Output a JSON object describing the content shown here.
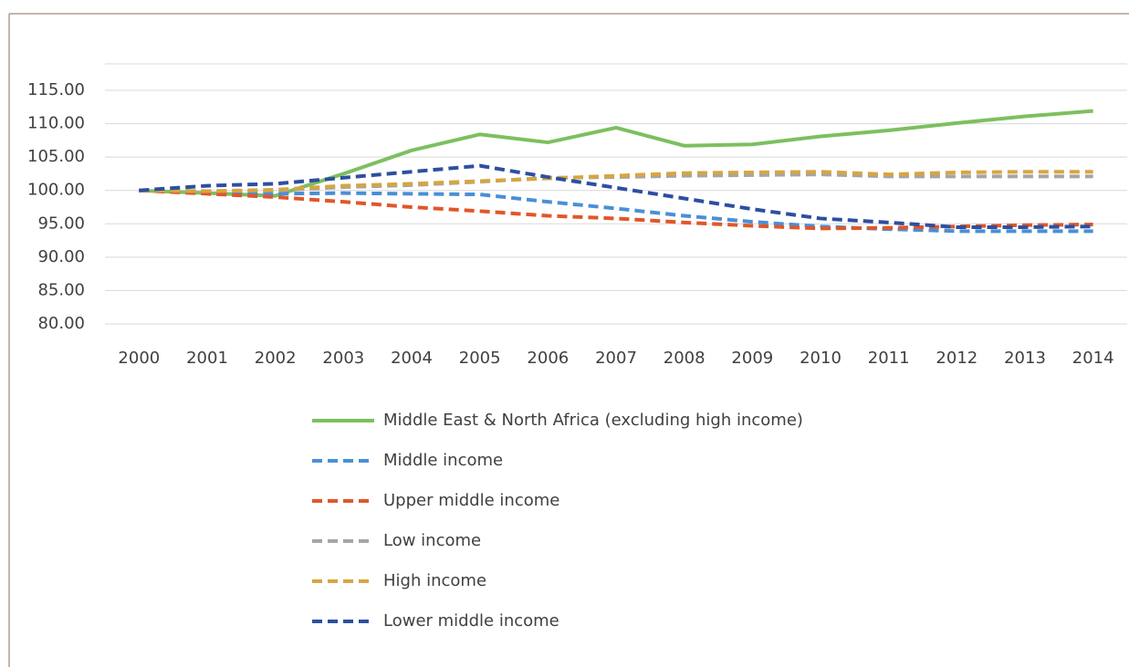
{
  "chart_data": {
    "type": "line",
    "categories": [
      "2000",
      "2001",
      "2002",
      "2003",
      "2004",
      "2005",
      "2006",
      "2007",
      "2008",
      "2009",
      "2010",
      "2011",
      "2012",
      "2013",
      "2014"
    ],
    "series": [
      {
        "name": "Middle East & North Africa (excluding high income)",
        "color": "#7dbf5f",
        "dashed": false,
        "values": [
          100,
          99.6,
          99.2,
          102.5,
          106,
          108.4,
          107.2,
          109.4,
          106.7,
          106.9,
          108.1,
          109,
          110.1,
          111.1,
          111.9
        ]
      },
      {
        "name": "Middle income",
        "color": "#4a8fd6",
        "dashed": true,
        "values": [
          100,
          99.8,
          99.5,
          99.6,
          99.5,
          99.4,
          98.3,
          97.3,
          96.2,
          95.3,
          94.6,
          94.2,
          93.9,
          93.9,
          93.9
        ]
      },
      {
        "name": "Upper middle income",
        "color": "#e0572a",
        "dashed": true,
        "values": [
          100,
          99.5,
          99,
          98.3,
          97.5,
          96.9,
          96.2,
          95.8,
          95.2,
          94.7,
          94.3,
          94.4,
          94.6,
          94.8,
          94.9
        ]
      },
      {
        "name": "Low income",
        "color": "#a5a5a5",
        "dashed": true,
        "values": [
          100,
          99.9,
          100,
          100.5,
          100.8,
          101.3,
          101.9,
          102,
          102.2,
          102.3,
          102.4,
          102.1,
          102.1,
          102.1,
          102.1
        ]
      },
      {
        "name": "High income",
        "color": "#d6a640",
        "dashed": true,
        "values": [
          100,
          99.9,
          100.1,
          100.7,
          101,
          101.4,
          101.8,
          102.2,
          102.6,
          102.7,
          102.8,
          102.4,
          102.7,
          102.8,
          102.8
        ]
      },
      {
        "name": "Lower middle income",
        "color": "#2d4fa0",
        "dashed": true,
        "values": [
          100,
          100.7,
          101,
          101.9,
          102.8,
          103.7,
          102,
          100.4,
          98.8,
          97.2,
          95.8,
          95.2,
          94.5,
          94.5,
          94.6
        ]
      }
    ],
    "ylim": [
      80,
      115
    ],
    "yticks": [
      {
        "value": 80,
        "label": "80.00"
      },
      {
        "value": 85,
        "label": "85.00"
      },
      {
        "value": 90,
        "label": "90.00"
      },
      {
        "value": 95,
        "label": "95.00"
      },
      {
        "value": 100,
        "label": "100.00"
      },
      {
        "value": 105,
        "label": "105.00"
      },
      {
        "value": 110,
        "label": "110.00"
      },
      {
        "value": 115,
        "label": "115.00"
      }
    ],
    "grid": true,
    "legend": "bottom"
  }
}
